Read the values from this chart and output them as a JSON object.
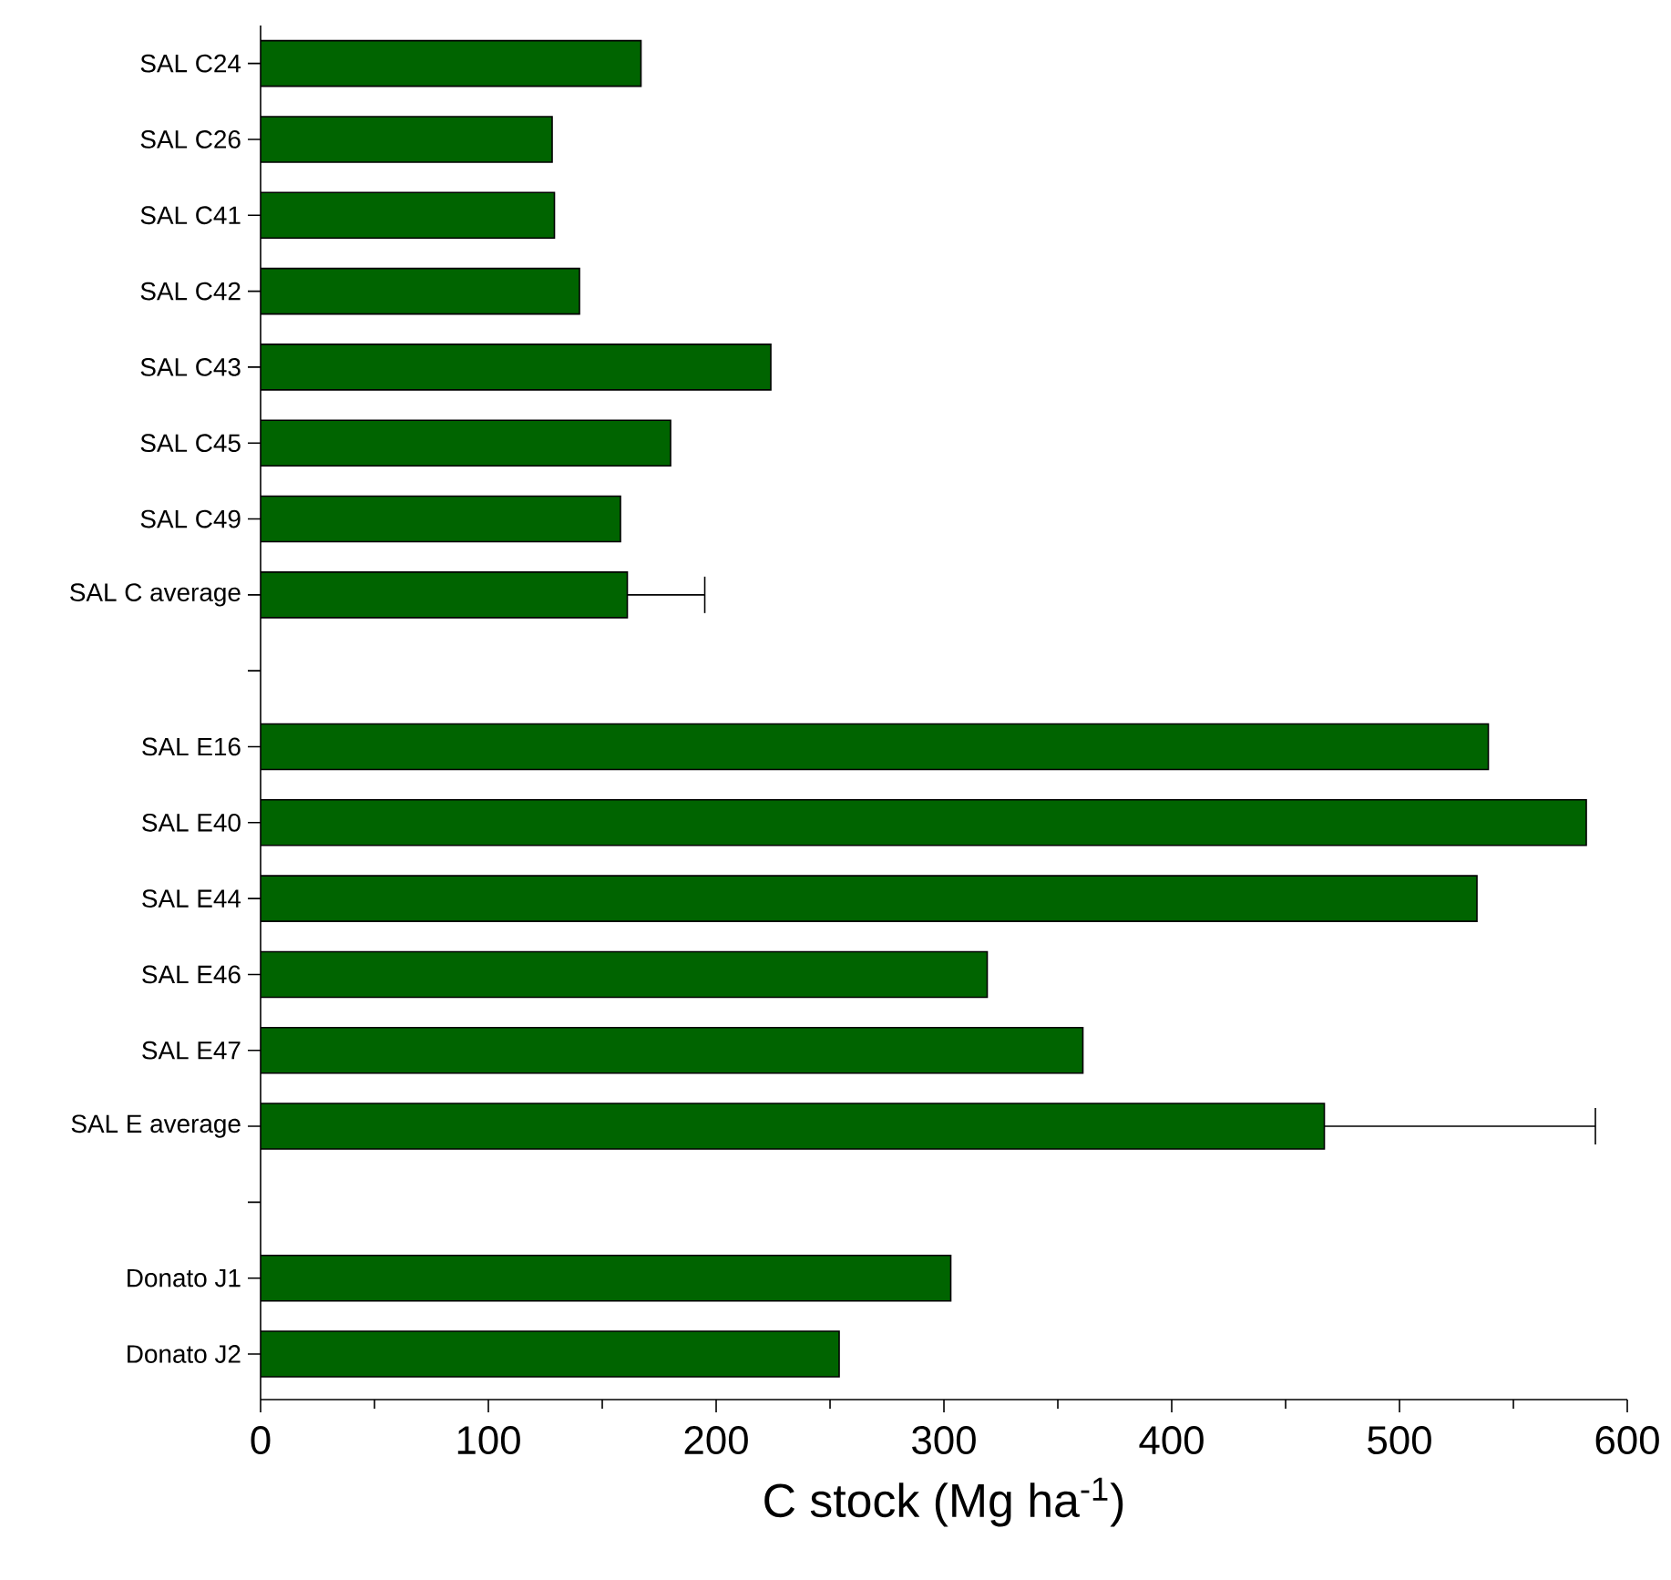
{
  "chart_data": {
    "type": "bar",
    "orientation": "horizontal",
    "xlabel": "C stock (Mg ha$^{-1}$)",
    "categories": [
      "SAL C24",
      "SAL C26",
      "SAL C41",
      "SAL C42",
      "SAL C43",
      "SAL C45",
      "SAL C49",
      "SAL C average",
      null,
      "SAL E16",
      "SAL E40",
      "SAL E44",
      "SAL E46",
      "SAL E47",
      "SAL E average",
      null,
      "Donato J1",
      "Donato J2"
    ],
    "values": [
      167,
      128,
      129,
      140,
      224,
      180,
      158,
      161,
      null,
      539,
      582,
      534,
      319,
      361,
      467,
      null,
      303,
      254
    ],
    "errors": [
      null,
      null,
      null,
      null,
      null,
      null,
      null,
      [
        161,
        195
      ],
      null,
      null,
      null,
      null,
      null,
      null,
      [
        467,
        586
      ],
      null,
      null,
      null
    ],
    "color": "#006400",
    "xlim": [
      0,
      600
    ],
    "xticks": [
      0,
      100,
      200,
      300,
      400,
      500,
      600
    ],
    "grid": false
  }
}
